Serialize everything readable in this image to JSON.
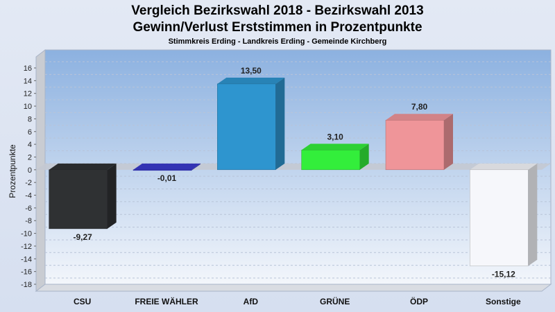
{
  "chart_data": {
    "type": "bar",
    "title": "Vergleich Bezirkswahl 2018 - Bezirkswahl 2013",
    "subtitle": "Gewinn/Verlust Erststimmen in Prozentpunkte",
    "caption": "Stimmkreis Erding - Landkreis Erding - Gemeinde Kirchberg",
    "ylabel": "Prozentpunkte",
    "xlabel": "",
    "ylim": [
      -18,
      16
    ],
    "yticks": [
      16,
      14,
      12,
      10,
      8,
      6,
      4,
      2,
      0,
      -2,
      -4,
      -6,
      -8,
      -10,
      -12,
      -14,
      -16,
      -18
    ],
    "categories": [
      "CSU",
      "FREIE WÄHLER",
      "AfD",
      "GRÜNE",
      "ÖDP",
      "Sonstige"
    ],
    "values": [
      -9.27,
      -0.01,
      13.5,
      3.1,
      7.8,
      -15.12
    ],
    "value_labels": [
      "-9,27",
      "-0,01",
      "13,50",
      "3,10",
      "7,80",
      "-15,12"
    ],
    "colors": [
      "#2f3133",
      "#3a3acd",
      "#2e95cf",
      "#33ee3b",
      "#ef9599",
      "#f6f7fb"
    ],
    "grid": true,
    "style": "3d"
  }
}
